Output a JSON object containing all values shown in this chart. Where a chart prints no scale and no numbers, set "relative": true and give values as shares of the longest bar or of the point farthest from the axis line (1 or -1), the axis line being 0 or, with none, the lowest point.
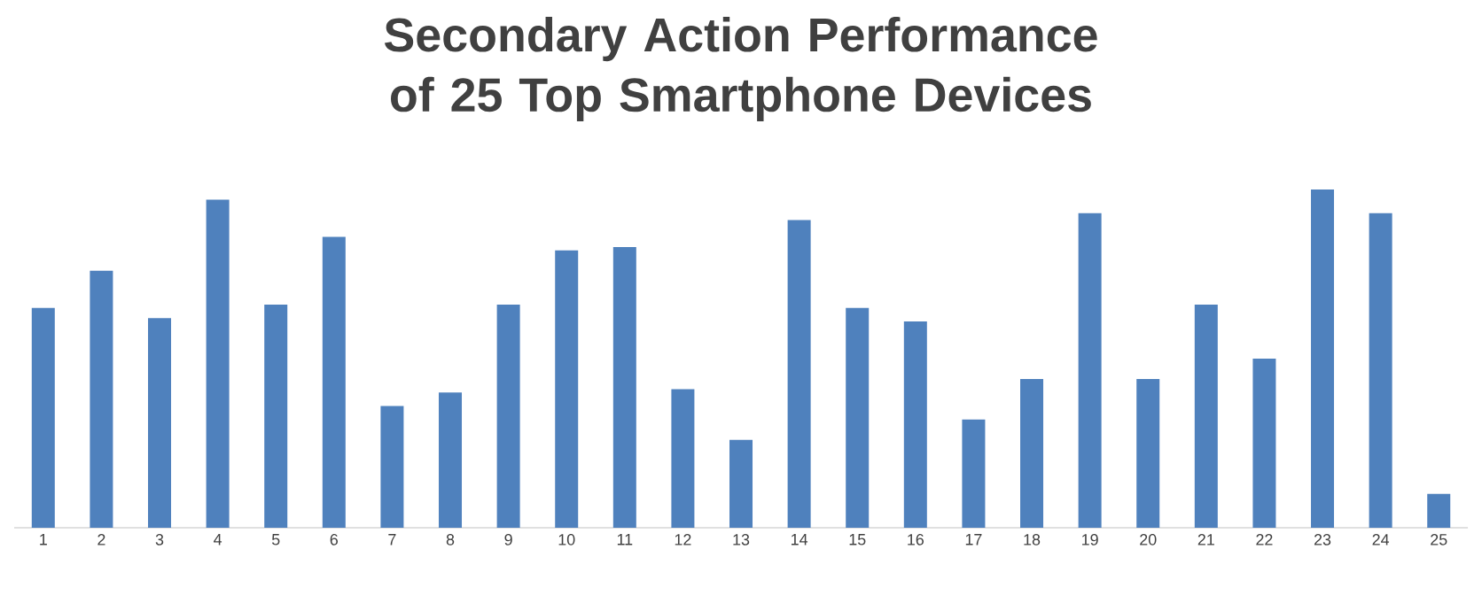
{
  "chart_data": {
    "type": "bar",
    "title": "Secondary Action Performance of 25 Top Smartphone Devices",
    "relative": true,
    "color": "#4f81bd",
    "categories": [
      "1",
      "2",
      "3",
      "4",
      "5",
      "6",
      "7",
      "8",
      "9",
      "10",
      "11",
      "12",
      "13",
      "14",
      "15",
      "16",
      "17",
      "18",
      "19",
      "20",
      "21",
      "22",
      "23",
      "24",
      "25"
    ],
    "values": [
      0.65,
      0.76,
      0.62,
      0.97,
      0.66,
      0.86,
      0.36,
      0.4,
      0.66,
      0.82,
      0.83,
      0.41,
      0.26,
      0.91,
      0.65,
      0.61,
      0.32,
      0.44,
      0.93,
      0.44,
      0.66,
      0.5,
      1,
      0.93,
      0.1
    ]
  }
}
